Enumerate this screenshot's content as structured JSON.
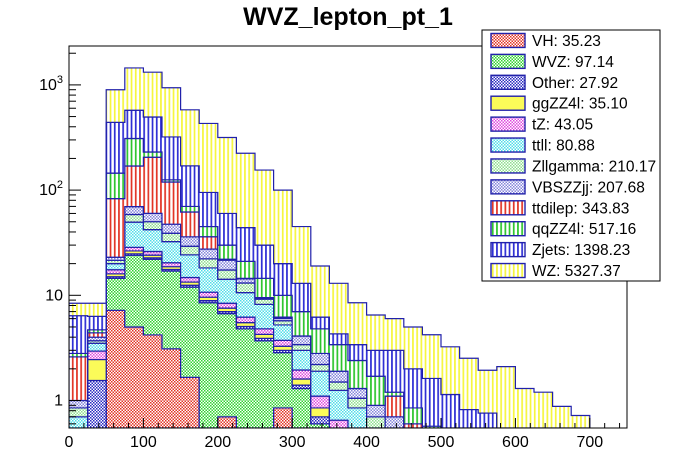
{
  "title": "WVZ_lepton_pt_1",
  "palette": {
    "line_color": "#2121aa",
    "frame_color": "#000000",
    "background": "#ffffff",
    "legend_border": "#000000"
  },
  "axes": {
    "x": {
      "tick_labels": [
        "0",
        "100",
        "200",
        "300",
        "400",
        "500",
        "600",
        "700"
      ],
      "tick_values": [
        0,
        100,
        200,
        300,
        400,
        500,
        600,
        700
      ],
      "minor_step": 20,
      "min": 0,
      "max": 750
    },
    "y": {
      "log": true,
      "min": 0.55,
      "max": 2350,
      "tick_labels": [
        {
          "base": "1",
          "sup": "",
          "value": 1
        },
        {
          "base": "10",
          "sup": "",
          "value": 10
        },
        {
          "base": "10",
          "sup": "2",
          "value": 100
        },
        {
          "base": "10",
          "sup": "3",
          "value": 1000
        }
      ]
    }
  },
  "legend": {
    "entries": [
      {
        "label": "VH",
        "value": "35.23"
      },
      {
        "label": "WVZ",
        "value": "97.14"
      },
      {
        "label": "Other",
        "value": "27.92"
      },
      {
        "label": "ggZZ4l",
        "value": "35.10"
      },
      {
        "label": "tZ",
        "value": "43.05"
      },
      {
        "label": "ttll",
        "value": "80.88"
      },
      {
        "label": "Zllgamma",
        "value": "210.17"
      },
      {
        "label": "VBSZZjj",
        "value": "207.68"
      },
      {
        "label": "ttdilep",
        "value": "343.83"
      },
      {
        "label": "qqZZ4l",
        "value": "517.16"
      },
      {
        "label": "Zjets",
        "value": "1398.23"
      },
      {
        "label": "WZ",
        "value": "5327.37"
      }
    ]
  },
  "chart_data": {
    "type": "bar",
    "subtype": "stacked-step-histogram",
    "title": "WVZ_lepton_pt_1",
    "xlabel": "",
    "ylabel": "",
    "ylog": true,
    "xlim": [
      0,
      750
    ],
    "ylim": [
      0.55,
      2350
    ],
    "bin_width": 25,
    "x_start": 0,
    "n_bins": 30,
    "legend_position": "top-right",
    "grid": false,
    "stack_order_note": "series listed bottom of stack to top; values are per-bin counts",
    "series": [
      {
        "name": "VH",
        "pattern": "checker",
        "color": "#e23324",
        "values": [
          0.05,
          0.1,
          7.2,
          5.0,
          4.2,
          3.1,
          1.66,
          0.5,
          0.7,
          0.2,
          0.1,
          0.85,
          0.1,
          0,
          0,
          0,
          0,
          0,
          0,
          0,
          0,
          0,
          0,
          0,
          0,
          0,
          0,
          0,
          0,
          0
        ]
      },
      {
        "name": "WVZ",
        "pattern": "checker",
        "color": "#2fd32f",
        "values": [
          0.08,
          0.25,
          7.3,
          19,
          17.8,
          13.9,
          10.3,
          8.0,
          6.0,
          4.6,
          3.6,
          2.0,
          1.2,
          0.6,
          0.25,
          0.1,
          0,
          0,
          0,
          0,
          0,
          0,
          0,
          0,
          0,
          0,
          0,
          0,
          0,
          0
        ]
      },
      {
        "name": "Other",
        "pattern": "checker",
        "color": "#2a2ac0",
        "values": [
          0.1,
          1.2,
          0.5,
          0.8,
          0.7,
          0.6,
          0.5,
          0.4,
          0.3,
          0.25,
          0.2,
          0.15,
          0.1,
          0.1,
          0.1,
          0.08,
          0.06,
          0.05,
          0.04,
          0.02,
          0.02,
          0.01,
          0.01,
          0.01,
          0,
          0,
          0,
          0,
          0,
          0
        ]
      },
      {
        "name": "ggZZ4l",
        "pattern": "solid",
        "color": "#fbfb59",
        "values": [
          0.12,
          0.9,
          1.0,
          1.6,
          1.4,
          1.1,
          0.9,
          0.7,
          0.55,
          0.45,
          0.35,
          0.28,
          0.2,
          0.15,
          0.1,
          0.08,
          0.06,
          0.04,
          0.03,
          0.02,
          0.02,
          0.01,
          0.01,
          0.01,
          0,
          0,
          0,
          0,
          0,
          0
        ]
      },
      {
        "name": "tZ",
        "pattern": "checker",
        "color": "#df4bdf",
        "values": [
          0.15,
          0.5,
          1.5,
          2.2,
          2.0,
          1.7,
          1.4,
          1.1,
          0.85,
          0.7,
          0.55,
          0.45,
          0.35,
          0.25,
          0.2,
          0.14,
          0.1,
          0.08,
          0.06,
          0.04,
          0.03,
          0.02,
          0.02,
          0.01,
          0,
          0,
          0,
          0,
          0,
          0
        ]
      },
      {
        "name": "ttll",
        "pattern": "checker",
        "color": "#4fdde8",
        "values": [
          0.2,
          0.55,
          2.5,
          21,
          16,
          12,
          9.5,
          7.5,
          5.8,
          4.4,
          3.4,
          1.5,
          1.05,
          0.8,
          0.6,
          0.45,
          0.33,
          0.25,
          0.18,
          0.13,
          0.1,
          0.07,
          0.05,
          0.03,
          0,
          0,
          0,
          0,
          0,
          0
        ]
      },
      {
        "name": "Zllgamma",
        "pattern": "checker",
        "color": "#8fdf8f",
        "values": [
          0.15,
          0.2,
          1.5,
          9,
          8,
          6.5,
          5.0,
          4.0,
          3.2,
          2.5,
          1.0,
          0.5,
          0.4,
          0.3,
          0.25,
          0.2,
          0.15,
          0.12,
          0.09,
          0.07,
          0.05,
          0.04,
          0.03,
          0.02,
          0,
          0,
          0,
          0,
          0,
          0
        ]
      },
      {
        "name": "VBSZZjj",
        "pattern": "checker",
        "color": "#8585db",
        "values": [
          0.15,
          0.3,
          1.5,
          11,
          10,
          8.5,
          6.7,
          5.3,
          4.2,
          1.2,
          0.2,
          0.3,
          0.7,
          0.6,
          0.4,
          0.25,
          0.2,
          0.16,
          0.12,
          0.09,
          0.07,
          0.05,
          0.04,
          0.02,
          0,
          0,
          0,
          0,
          0,
          0
        ]
      },
      {
        "name": "ttdilep",
        "pattern": "vlines",
        "color": "#e23324",
        "values": [
          1.6,
          0.4,
          60,
          100,
          145,
          72,
          26,
          8.5,
          0.4,
          0.2,
          0.1,
          0.17,
          0,
          0,
          0,
          0,
          0,
          0.4,
          0.08,
          0,
          0,
          0,
          0,
          0,
          0,
          0,
          0,
          0,
          0,
          0
        ]
      },
      {
        "name": "qqZZ4l",
        "pattern": "vlines",
        "color": "#2bc42b",
        "values": [
          0.2,
          0.3,
          62,
          140,
          25,
          5.6,
          8,
          9,
          8,
          6.5,
          5.0,
          3.8,
          2.9,
          2.0,
          1.5,
          1.1,
          0.8,
          0.1,
          0.25,
          0.2,
          0.15,
          0.1,
          0.06,
          0,
          0,
          0,
          0,
          0,
          0,
          0
        ]
      },
      {
        "name": "Zjets",
        "pattern": "vlines",
        "color": "#2c2cd4",
        "values": [
          3.6,
          1.6,
          295,
          265,
          265,
          195,
          100,
          50,
          30,
          23,
          15.5,
          10,
          6,
          1.4,
          0.9,
          1.0,
          1.3,
          1.8,
          1.15,
          1.05,
          0.7,
          0.52,
          0.54,
          0,
          0,
          0,
          0,
          0,
          0,
          0
        ]
      },
      {
        "name": "WZ",
        "pattern": "vlines",
        "color": "#f6f63c",
        "values": [
          2.0,
          2.1,
          460,
          875,
          825,
          620,
          410,
          335,
          256,
          180,
          125,
          80,
          32,
          12.8,
          8.7,
          5.1,
          3.5,
          3.0,
          3.0,
          2.6,
          2.1,
          1.7,
          1.18,
          2.0,
          1.3,
          1.2,
          0.88,
          0.72,
          0,
          0
        ]
      }
    ]
  }
}
